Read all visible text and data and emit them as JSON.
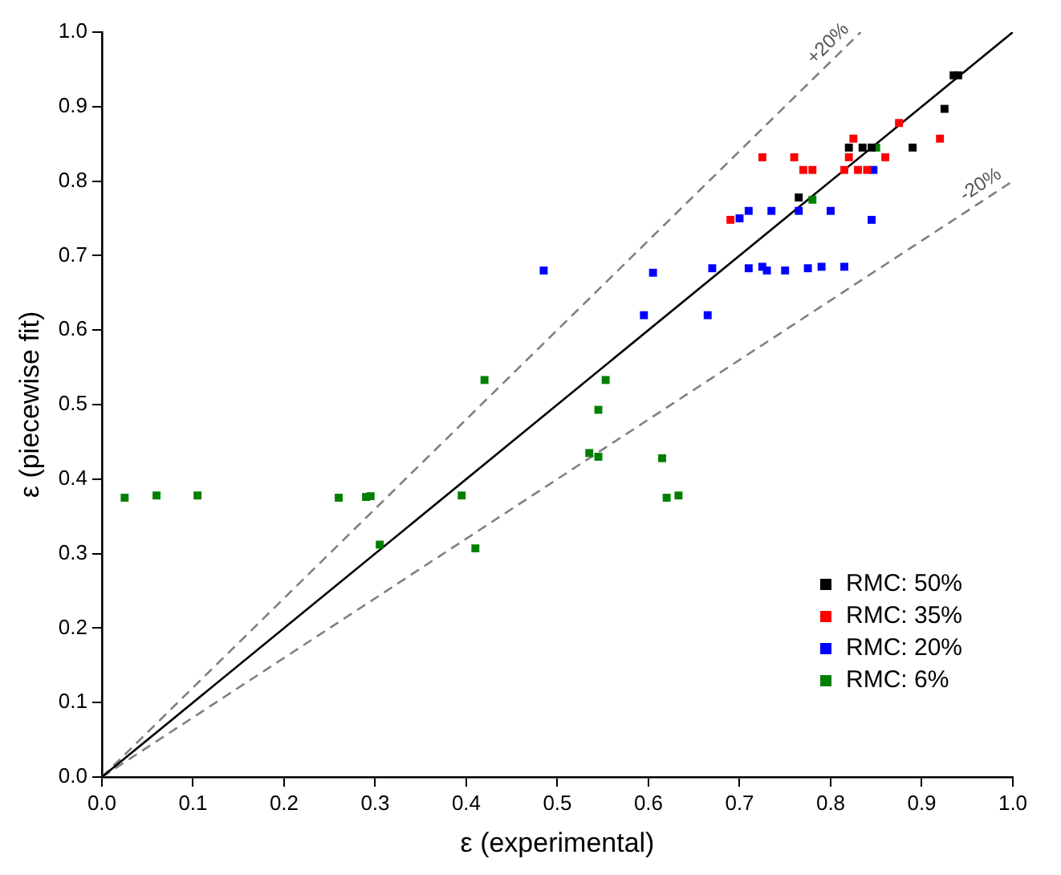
{
  "chart_data": {
    "type": "scatter",
    "xlabel": "ε (experimental)",
    "ylabel": "ε (piecewise fit)",
    "xlim": [
      0,
      1
    ],
    "ylim": [
      0,
      1
    ],
    "xticks": [
      {
        "value": 0,
        "label": "0.0"
      },
      0.1,
      0.2,
      0.3,
      0.4,
      0.5,
      0.6,
      0.7,
      0.8,
      0.9,
      {
        "value": 1,
        "label": "1.0"
      }
    ],
    "yticks": [
      {
        "value": 0,
        "label": "0.0"
      },
      0.1,
      0.2,
      0.3,
      0.4,
      0.5,
      0.6,
      0.7,
      0.8,
      0.9,
      {
        "value": 1,
        "label": "1.0"
      }
    ],
    "grid": false,
    "legend": "bottom right",
    "marker": "square",
    "series": [
      {
        "name": "RMC: 50%",
        "color": "#000000",
        "x": [
          0.765,
          0.82,
          0.835,
          0.845,
          0.89,
          0.925,
          0.935,
          0.94
        ],
        "values": [
          0.778,
          0.845,
          0.845,
          0.845,
          0.845,
          0.897,
          0.942,
          0.942
        ]
      },
      {
        "name": "RMC: 35%",
        "color": "#ff0000",
        "x": [
          0.69,
          0.725,
          0.76,
          0.77,
          0.78,
          0.815,
          0.82,
          0.825,
          0.83,
          0.84,
          0.86,
          0.875,
          0.92
        ],
        "values": [
          0.748,
          0.832,
          0.832,
          0.815,
          0.815,
          0.815,
          0.832,
          0.857,
          0.815,
          0.815,
          0.832,
          0.878,
          0.857
        ]
      },
      {
        "name": "RMC: 20%",
        "color": "#0000ff",
        "x": [
          0.485,
          0.595,
          0.605,
          0.665,
          0.67,
          0.7,
          0.71,
          0.71,
          0.725,
          0.73,
          0.735,
          0.75,
          0.765,
          0.775,
          0.79,
          0.8,
          0.815,
          0.847,
          0.845
        ],
        "values": [
          0.68,
          0.62,
          0.677,
          0.62,
          0.683,
          0.75,
          0.76,
          0.683,
          0.685,
          0.68,
          0.76,
          0.68,
          0.76,
          0.683,
          0.685,
          0.76,
          0.685,
          0.815,
          0.748
        ]
      },
      {
        "name": "RMC: 6%",
        "color": "#008000",
        "x": [
          0.025,
          0.06,
          0.105,
          0.26,
          0.29,
          0.295,
          0.305,
          0.395,
          0.41,
          0.42,
          0.535,
          0.545,
          0.545,
          0.553,
          0.615,
          0.62,
          0.633,
          0.78,
          0.85
        ],
        "values": [
          0.375,
          0.378,
          0.378,
          0.375,
          0.376,
          0.377,
          0.312,
          0.378,
          0.307,
          0.533,
          0.435,
          0.43,
          0.493,
          0.533,
          0.428,
          0.375,
          0.378,
          0.775,
          0.845
        ]
      },
      {
        "type": "line",
        "color": "#000000",
        "line_style": "solid",
        "marker": "none",
        "x": [
          0,
          1
        ],
        "values": [
          0,
          1
        ]
      },
      {
        "type": "line",
        "color": "#808080",
        "line_style": "dashed",
        "marker": "none",
        "x": [
          0,
          0.833
        ],
        "values": [
          0,
          1
        ]
      },
      {
        "type": "line",
        "color": "#808080",
        "line_style": "dashed",
        "marker": "none",
        "x": [
          0,
          1
        ],
        "values": [
          0,
          0.8
        ]
      }
    ],
    "annotations": [
      {
        "text": "+20%",
        "x": 0.833,
        "y": 1.0
      },
      {
        "text": "-20%",
        "x": 1.0,
        "y": 0.8
      }
    ]
  }
}
